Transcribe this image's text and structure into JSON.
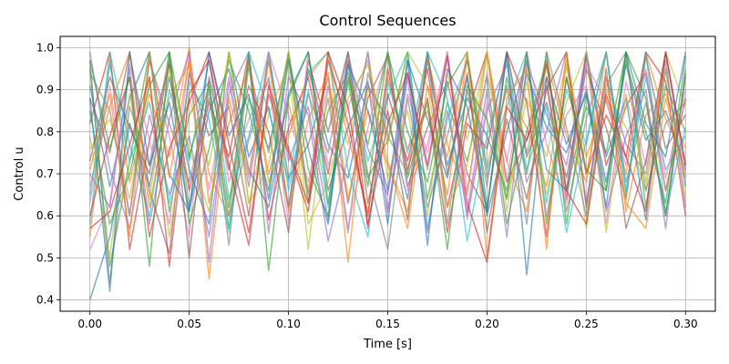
{
  "chart_data": {
    "type": "line",
    "title": "Control Sequences",
    "xlabel": "Time [s]",
    "ylabel": "Control u",
    "xlim": [
      -0.015,
      0.315
    ],
    "ylim": [
      0.373,
      1.027
    ],
    "x_ticks": [
      0.0,
      0.05,
      0.1,
      0.15,
      0.2,
      0.25,
      0.3
    ],
    "x_tick_labels": [
      "0.00",
      "0.05",
      "0.10",
      "0.15",
      "0.20",
      "0.25",
      "0.30"
    ],
    "y_ticks": [
      0.4,
      0.5,
      0.6,
      0.7,
      0.8,
      0.9,
      1.0
    ],
    "y_tick_labels": [
      "0.4",
      "0.5",
      "0.6",
      "0.7",
      "0.8",
      "0.9",
      "1.0"
    ],
    "grid": true,
    "legend": "none",
    "x": [
      0.0,
      0.01,
      0.02,
      0.03,
      0.04,
      0.05,
      0.06,
      0.07,
      0.08,
      0.09,
      0.1,
      0.11,
      0.12,
      0.13,
      0.14,
      0.15,
      0.16,
      0.17,
      0.18,
      0.19,
      0.2,
      0.21,
      0.22,
      0.23,
      0.24,
      0.25,
      0.26,
      0.27,
      0.28,
      0.29,
      0.3
    ],
    "series_colors": [
      "#1f77b4",
      "#ff7f0e",
      "#2ca02c",
      "#d62728",
      "#9467bd",
      "#8c564b",
      "#e377c2",
      "#7f7f7f",
      "#bcbd22",
      "#17becf"
    ],
    "series": [
      {
        "values": [
          0.4,
          0.55,
          0.82,
          0.67,
          0.93,
          0.71,
          0.58,
          0.99,
          0.74,
          0.86,
          0.62,
          0.95,
          0.77,
          0.69,
          0.91,
          0.83,
          0.64,
          0.97,
          0.72,
          0.88,
          0.79,
          0.66,
          0.94,
          0.81,
          0.75,
          0.9,
          0.68,
          0.96,
          0.78,
          0.85,
          0.71
        ]
      },
      {
        "values": [
          0.55,
          0.97,
          0.68,
          0.89,
          0.74,
          1.0,
          0.63,
          0.82,
          0.95,
          0.7,
          0.87,
          0.66,
          0.99,
          0.79,
          0.61,
          0.93,
          0.76,
          0.85,
          0.65,
          0.98,
          0.72,
          0.9,
          0.81,
          0.67,
          0.96,
          0.74,
          0.88,
          0.7,
          0.99,
          0.83,
          0.73
        ]
      },
      {
        "values": [
          0.95,
          0.48,
          0.73,
          0.99,
          0.61,
          0.84,
          0.92,
          0.57,
          0.88,
          0.76,
          0.98,
          0.63,
          0.85,
          0.94,
          0.69,
          0.78,
          0.99,
          0.64,
          0.87,
          0.73,
          0.93,
          0.58,
          0.8,
          0.97,
          0.66,
          0.86,
          0.75,
          0.99,
          0.62,
          0.91,
          0.8
        ]
      },
      {
        "values": [
          0.82,
          0.99,
          0.52,
          0.78,
          0.96,
          0.66,
          0.87,
          0.74,
          0.99,
          0.59,
          0.81,
          0.93,
          0.7,
          0.97,
          0.57,
          0.89,
          0.73,
          0.95,
          0.62,
          0.84,
          0.99,
          0.68,
          0.78,
          0.91,
          0.64,
          0.98,
          0.72,
          0.86,
          0.94,
          0.66,
          0.88
        ]
      },
      {
        "values": [
          0.7,
          0.62,
          0.95,
          0.58,
          0.83,
          0.99,
          0.49,
          0.92,
          0.67,
          0.97,
          0.73,
          0.86,
          0.59,
          0.99,
          0.76,
          0.65,
          0.94,
          0.71,
          0.98,
          0.6,
          0.85,
          0.96,
          0.68,
          0.8,
          0.99,
          0.63,
          0.93,
          0.77,
          0.7,
          0.97,
          0.62
        ]
      },
      {
        "values": [
          0.88,
          0.75,
          0.99,
          0.66,
          0.51,
          0.94,
          0.79,
          0.86,
          0.6,
          0.99,
          0.69,
          0.77,
          0.93,
          0.63,
          0.88,
          0.98,
          0.67,
          0.81,
          0.92,
          0.7,
          0.61,
          0.99,
          0.74,
          0.87,
          0.69,
          0.95,
          0.81,
          0.64,
          0.98,
          0.76,
          0.84
        ]
      },
      {
        "values": [
          0.63,
          0.91,
          0.6,
          0.97,
          0.79,
          0.55,
          0.99,
          0.68,
          0.83,
          0.92,
          0.58,
          0.99,
          0.72,
          0.86,
          0.97,
          0.61,
          0.89,
          0.75,
          0.99,
          0.66,
          0.94,
          0.73,
          0.99,
          0.6,
          0.84,
          0.91,
          0.58,
          0.92,
          0.72,
          0.99,
          0.69
        ]
      },
      {
        "values": [
          0.97,
          0.44,
          0.86,
          0.72,
          0.99,
          0.62,
          0.9,
          0.53,
          0.96,
          0.75,
          0.99,
          0.65,
          0.88,
          0.56,
          0.94,
          0.79,
          0.7,
          0.99,
          0.58,
          0.9,
          0.67,
          0.99,
          0.75,
          0.93,
          0.61,
          0.83,
          0.99,
          0.68,
          0.87,
          0.6,
          0.93
        ]
      },
      {
        "values": [
          0.76,
          0.83,
          0.64,
          0.93,
          0.55,
          0.88,
          0.72,
          0.99,
          0.63,
          0.84,
          0.96,
          0.52,
          0.91,
          0.77,
          0.99,
          0.69,
          0.85,
          0.6,
          0.94,
          0.78,
          0.99,
          0.64,
          0.88,
          0.74,
          0.97,
          0.57,
          0.9,
          0.81,
          0.66,
          0.99,
          0.86
        ]
      },
      {
        "values": [
          0.58,
          0.99,
          0.77,
          0.6,
          0.9,
          0.73,
          0.97,
          0.64,
          0.79,
          0.99,
          0.66,
          0.9,
          0.62,
          0.96,
          0.73,
          0.88,
          0.99,
          0.57,
          0.83,
          0.97,
          0.71,
          0.86,
          0.99,
          0.63,
          0.9,
          0.77,
          0.99,
          0.66,
          0.93,
          0.71,
          0.79
        ]
      },
      {
        "values": [
          0.91,
          0.67,
          0.88,
          0.99,
          0.7,
          0.61,
          0.85,
          0.95,
          0.71,
          0.62,
          0.89,
          0.99,
          0.66,
          0.81,
          0.92,
          0.58,
          0.97,
          0.83,
          0.69,
          0.93,
          0.6,
          0.8,
          0.97,
          0.71,
          0.66,
          0.99,
          0.74,
          0.88,
          0.59,
          0.95,
          0.67
        ]
      },
      {
        "values": [
          0.67,
          0.86,
          0.99,
          0.62,
          0.88,
          0.96,
          0.7,
          0.6,
          0.97,
          0.68,
          0.79,
          0.93,
          0.99,
          0.64,
          0.85,
          0.72,
          0.61,
          0.98,
          0.77,
          0.65,
          0.99,
          0.73,
          0.61,
          0.97,
          0.79,
          0.68,
          0.99,
          0.61,
          0.84,
          0.89,
          0.76
        ]
      },
      {
        "values": [
          0.85,
          0.58,
          0.7,
          0.91,
          0.99,
          0.58,
          0.76,
          0.97,
          0.85,
          0.66,
          0.99,
          0.71,
          0.6,
          0.92,
          0.67,
          0.99,
          0.8,
          0.68,
          0.91,
          0.99,
          0.62,
          0.93,
          0.7,
          0.99,
          0.58,
          0.89,
          0.66,
          0.97,
          0.8,
          0.63,
          0.98
        ]
      },
      {
        "values": [
          0.6,
          0.79,
          0.93,
          0.55,
          0.76,
          0.87,
          0.99,
          0.77,
          0.56,
          0.89,
          0.75,
          0.61,
          0.97,
          0.82,
          0.6,
          0.95,
          0.71,
          0.88,
          0.56,
          0.82,
          0.76,
          0.99,
          0.87,
          0.55,
          0.93,
          0.7,
          0.84,
          0.74,
          0.99,
          0.92,
          0.6
        ]
      },
      {
        "values": [
          0.99,
          0.71,
          0.57,
          0.84,
          0.65,
          0.79,
          0.55,
          0.89,
          0.99,
          0.56,
          0.93,
          0.84,
          0.54,
          0.74,
          0.99,
          0.61,
          0.93,
          0.56,
          0.85,
          0.61,
          0.9,
          0.55,
          0.96,
          0.84,
          0.72,
          0.99,
          0.61,
          0.79,
          0.9,
          0.57,
          0.95
        ]
      },
      {
        "values": [
          0.73,
          0.93,
          0.81,
          0.7,
          0.97,
          0.5,
          0.93,
          0.71,
          0.91,
          0.8,
          0.56,
          0.97,
          0.8,
          0.99,
          0.63,
          0.85,
          0.59,
          0.99,
          0.7,
          0.94,
          0.56,
          0.83,
          0.64,
          0.9,
          0.99,
          0.62,
          0.95,
          0.57,
          0.73,
          0.99,
          0.72
        ]
      },
      {
        "values": [
          0.52,
          0.63,
          0.96,
          0.78,
          0.58,
          0.98,
          0.66,
          0.93,
          0.69,
          0.99,
          0.84,
          0.68,
          0.91,
          0.57,
          0.81,
          0.99,
          0.66,
          0.77,
          0.99,
          0.59,
          0.87,
          0.68,
          0.99,
          0.77,
          0.63,
          0.96,
          0.87,
          0.72,
          0.95,
          0.69,
          0.9
        ]
      },
      {
        "values": [
          0.94,
          0.85,
          0.6,
          0.97,
          0.82,
          0.68,
          0.88,
          0.6,
          0.78,
          0.93,
          0.62,
          0.89,
          0.75,
          0.99,
          0.7,
          0.52,
          0.88,
          0.62,
          0.79,
          0.97,
          0.69,
          0.91,
          0.58,
          0.99,
          0.81,
          0.6,
          0.91,
          0.99,
          0.66,
          0.82,
          0.87
        ]
      },
      {
        "values": [
          0.79,
          0.5,
          0.89,
          0.64,
          0.95,
          0.76,
          0.61,
          0.99,
          0.63,
          0.72,
          0.99,
          0.58,
          0.68,
          0.88,
          0.96,
          0.77,
          0.99,
          0.91,
          0.62,
          0.72,
          0.99,
          0.61,
          0.92,
          0.65,
          0.87,
          0.99,
          0.56,
          0.89,
          0.68,
          0.95,
          0.64
        ]
      },
      {
        "values": [
          0.65,
          0.96,
          0.73,
          0.87,
          0.63,
          0.92,
          0.83,
          0.56,
          0.99,
          0.85,
          0.68,
          0.94,
          0.99,
          0.71,
          0.55,
          0.92,
          0.75,
          0.99,
          0.88,
          0.54,
          0.79,
          0.97,
          0.71,
          0.86,
          0.56,
          0.78,
          0.99,
          0.65,
          0.99,
          0.61,
          0.81
        ]
      },
      {
        "values": [
          0.88,
          0.42,
          0.99,
          0.72,
          0.87,
          0.61,
          0.99,
          0.79,
          0.89,
          0.64,
          0.97,
          0.76,
          0.58,
          0.96,
          0.85,
          0.66,
          0.97,
          0.53,
          0.95,
          0.86,
          0.61,
          0.99,
          0.46,
          0.93,
          0.77,
          0.89,
          0.62,
          0.99,
          0.82,
          0.74,
          0.99
        ]
      },
      {
        "values": [
          0.71,
          0.89,
          0.55,
          0.99,
          0.69,
          0.97,
          0.45,
          0.88,
          0.7,
          0.97,
          0.61,
          0.83,
          0.94,
          0.49,
          0.91,
          0.73,
          0.57,
          0.91,
          0.74,
          0.99,
          0.5,
          0.88,
          0.95,
          0.52,
          0.99,
          0.7,
          0.93,
          0.63,
          0.57,
          0.88,
          0.69
        ]
      },
      {
        "values": [
          0.97,
          0.76,
          0.93,
          0.48,
          0.99,
          0.74,
          0.91,
          0.62,
          0.98,
          0.47,
          0.88,
          0.99,
          0.63,
          0.93,
          0.77,
          0.99,
          0.69,
          0.87,
          0.52,
          0.91,
          0.83,
          0.64,
          0.99,
          0.58,
          0.93,
          0.71,
          0.66,
          0.99,
          0.88,
          0.6,
          0.94
        ]
      },
      {
        "values": [
          0.57,
          0.61,
          0.77,
          0.93,
          0.48,
          0.89,
          0.97,
          0.72,
          0.53,
          0.91,
          0.76,
          0.63,
          0.99,
          0.86,
          0.58,
          0.82,
          0.94,
          0.72,
          0.98,
          0.63,
          0.49,
          0.86,
          0.78,
          0.96,
          0.66,
          0.58,
          0.89,
          0.74,
          0.61,
          0.99,
          0.72
        ]
      }
    ]
  }
}
